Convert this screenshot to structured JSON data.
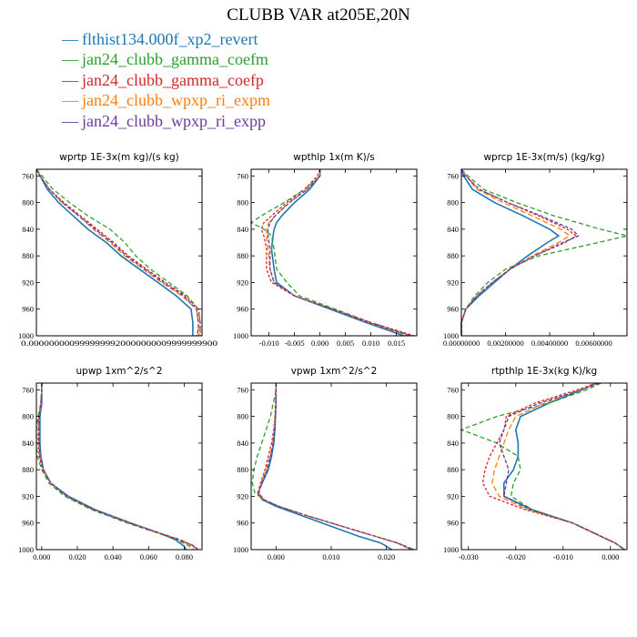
{
  "figure": {
    "title": "CLUBB VAR at205E,20N",
    "series": [
      {
        "name": "flthist134.000f_xp2_revert",
        "color": "#1f77b4",
        "dash": "none"
      },
      {
        "name": "jan24_clubb_gamma_coefm",
        "color": "#2ca02c",
        "dash": "5,3"
      },
      {
        "name": "jan24_clubb_gamma_coefp",
        "color": "#d62728",
        "dash": "3,2"
      },
      {
        "name": "jan24_clubb_wpxp_ri_expm",
        "color": "#ff7f0e",
        "dash": "6,3"
      },
      {
        "name": "jan24_clubb_wpxp_ri_expp",
        "color": "#6a3d9a",
        "dash": "4,2"
      }
    ]
  },
  "chart_data": [
    {
      "type": "line",
      "title": "wprtp  1E-3x(m kg)/(s kg)",
      "ylim": [
        1000,
        750
      ],
      "yticks": [
        760,
        800,
        840,
        880,
        920,
        960,
        1000
      ],
      "xlim": [
        0.0,
        0.09
      ],
      "xticks": [],
      "xtick_label_text": "0.0000000009999999920000000009999999900",
      "y": [
        750,
        760,
        780,
        800,
        820,
        840,
        860,
        880,
        900,
        920,
        940,
        960,
        980,
        990,
        1000
      ],
      "series": [
        {
          "x": [
            0.0,
            0.002,
            0.006,
            0.012,
            0.02,
            0.028,
            0.038,
            0.046,
            0.056,
            0.066,
            0.076,
            0.084,
            0.085,
            0.085,
            0.085
          ]
        },
        {
          "x": [
            0.0,
            0.003,
            0.009,
            0.018,
            0.028,
            0.04,
            0.048,
            0.054,
            0.062,
            0.072,
            0.082,
            0.088,
            0.089,
            0.089,
            0.088
          ]
        },
        {
          "x": [
            0.0,
            0.002,
            0.007,
            0.015,
            0.024,
            0.033,
            0.042,
            0.05,
            0.06,
            0.07,
            0.081,
            0.088,
            0.089,
            0.089,
            0.089
          ]
        },
        {
          "x": [
            0.0,
            0.002,
            0.007,
            0.014,
            0.023,
            0.031,
            0.04,
            0.048,
            0.058,
            0.068,
            0.079,
            0.087,
            0.088,
            0.088,
            0.088
          ]
        },
        {
          "x": [
            0.0,
            0.002,
            0.007,
            0.014,
            0.023,
            0.032,
            0.041,
            0.049,
            0.059,
            0.069,
            0.08,
            0.087,
            0.088,
            0.088,
            0.087
          ]
        }
      ]
    },
    {
      "type": "line",
      "title": "wpthlp  1x(m K)/s",
      "ylim": [
        1000,
        750
      ],
      "yticks": [
        760,
        800,
        840,
        880,
        920,
        960,
        1000
      ],
      "xlim": [
        -0.0135,
        0.019
      ],
      "xticks": [
        -0.01,
        -0.005,
        0.0,
        0.005,
        0.01,
        0.015
      ],
      "xtick_labels": [
        "-0.010",
        "-0.005",
        "0.000",
        "0.005",
        "0.010",
        "0.015"
      ],
      "y": [
        750,
        760,
        780,
        800,
        820,
        830,
        840,
        850,
        870,
        900,
        920,
        940,
        960,
        980,
        1000
      ],
      "series": [
        {
          "x": [
            0.0,
            0.0,
            -0.002,
            -0.005,
            -0.0075,
            -0.0085,
            -0.009,
            -0.0092,
            -0.0095,
            -0.009,
            -0.0085,
            -0.005,
            0.002,
            0.009,
            0.0165
          ]
        },
        {
          "x": [
            0.0,
            0.0,
            -0.003,
            -0.007,
            -0.0115,
            -0.0135,
            -0.011,
            -0.0095,
            -0.009,
            -0.0085,
            -0.0065,
            -0.004,
            0.003,
            0.01,
            0.018
          ]
        },
        {
          "x": [
            0.0,
            -0.0005,
            -0.003,
            -0.0065,
            -0.0095,
            -0.011,
            -0.0115,
            -0.011,
            -0.0105,
            -0.0105,
            -0.0095,
            -0.005,
            0.0025,
            0.01,
            0.0185
          ]
        },
        {
          "x": [
            0.0,
            0.0,
            -0.0025,
            -0.006,
            -0.0088,
            -0.01,
            -0.0105,
            -0.0105,
            -0.0102,
            -0.0098,
            -0.009,
            -0.005,
            0.0025,
            0.0095,
            0.0175
          ]
        },
        {
          "x": [
            0.0,
            0.0,
            -0.0025,
            -0.006,
            -0.0088,
            -0.0098,
            -0.0102,
            -0.0102,
            -0.0098,
            -0.0098,
            -0.009,
            -0.005,
            0.0025,
            0.0095,
            0.0178
          ]
        }
      ]
    },
    {
      "type": "line",
      "title": "wprcp  1E-3x(m/s) (kg/kg)",
      "ylim": [
        1000,
        750
      ],
      "yticks": [
        760,
        800,
        840,
        880,
        920,
        960,
        1000
      ],
      "xlim": [
        0.0,
        0.0075
      ],
      "xticks": [
        0.0,
        0.002,
        0.004,
        0.006
      ],
      "xtick_labels": [
        "0.00000000",
        "0.00200000",
        "0.00400000",
        "0.00600000"
      ],
      "y": [
        750,
        760,
        780,
        800,
        820,
        840,
        850,
        860,
        880,
        900,
        920,
        940,
        960,
        980,
        1000
      ],
      "series": [
        {
          "x": [
            0.0,
            0.0001,
            0.0005,
            0.0015,
            0.0028,
            0.004,
            0.0044,
            0.0039,
            0.003,
            0.0022,
            0.0015,
            0.0008,
            0.0002,
            0.0,
            0.0
          ]
        },
        {
          "x": [
            0.0,
            0.0003,
            0.001,
            0.0025,
            0.0042,
            0.0063,
            0.0075,
            0.0062,
            0.0035,
            0.002,
            0.0012,
            0.0006,
            0.0002,
            0.0,
            0.0
          ]
        },
        {
          "x": [
            0.0,
            0.0002,
            0.0008,
            0.0021,
            0.0035,
            0.0048,
            0.0052,
            0.0047,
            0.0033,
            0.0022,
            0.0014,
            0.0007,
            0.0002,
            0.0,
            0.0
          ]
        },
        {
          "x": [
            0.0,
            0.0002,
            0.0007,
            0.0019,
            0.0032,
            0.0045,
            0.0049,
            0.0044,
            0.0032,
            0.0022,
            0.0014,
            0.0007,
            0.0002,
            0.0,
            0.0
          ]
        },
        {
          "x": [
            0.0,
            0.0002,
            0.0008,
            0.0021,
            0.0036,
            0.005,
            0.0053,
            0.0046,
            0.0033,
            0.0022,
            0.0014,
            0.0007,
            0.0002,
            0.0,
            0.0
          ]
        }
      ]
    },
    {
      "type": "line",
      "title": "upwp  1xm^2/s^2",
      "ylim": [
        1000,
        750
      ],
      "yticks": [
        760,
        800,
        840,
        880,
        920,
        960,
        1000
      ],
      "xlim": [
        -0.003,
        0.09
      ],
      "xticks": [
        0.0,
        0.02,
        0.04,
        0.06,
        0.08
      ],
      "xtick_labels": [
        "0.000",
        "0.020",
        "0.040",
        "0.060",
        "0.080"
      ],
      "y": [
        750,
        760,
        780,
        800,
        820,
        840,
        860,
        880,
        900,
        920,
        940,
        960,
        975,
        985,
        995,
        1000
      ],
      "series": [
        {
          "x": [
            0.0,
            0.0,
            0.0,
            -0.001,
            -0.001,
            -0.001,
            -0.0005,
            0.001,
            0.005,
            0.015,
            0.03,
            0.05,
            0.066,
            0.075,
            0.08,
            0.081
          ]
        },
        {
          "x": [
            0.0,
            0.0,
            -0.0005,
            -0.002,
            -0.003,
            -0.003,
            -0.0025,
            0.0,
            0.004,
            0.013,
            0.028,
            0.048,
            0.065,
            0.076,
            0.083,
            0.085
          ]
        },
        {
          "x": [
            0.0,
            0.0,
            -0.0005,
            -0.0015,
            -0.002,
            -0.002,
            -0.0015,
            0.0005,
            0.005,
            0.014,
            0.029,
            0.049,
            0.066,
            0.077,
            0.085,
            0.087
          ]
        },
        {
          "x": [
            0.0,
            0.0,
            -0.0005,
            -0.0015,
            -0.0015,
            -0.0015,
            -0.001,
            0.001,
            0.005,
            0.014,
            0.029,
            0.049,
            0.066,
            0.078,
            0.086,
            0.088
          ]
        },
        {
          "x": [
            0.0,
            0.0,
            -0.0005,
            -0.0015,
            -0.0015,
            -0.0015,
            -0.001,
            0.001,
            0.005,
            0.014,
            0.029,
            0.049,
            0.066,
            0.077,
            0.086,
            0.087
          ]
        }
      ]
    },
    {
      "type": "line",
      "title": "vpwp  1xm^2/s^2",
      "ylim": [
        1000,
        750
      ],
      "yticks": [
        760,
        800,
        840,
        880,
        920,
        960,
        1000
      ],
      "xlim": [
        -0.0045,
        0.0255
      ],
      "xticks": [
        0.0,
        0.01,
        0.02
      ],
      "xtick_labels": [
        "0.000",
        "0.010",
        "0.020"
      ],
      "y": [
        750,
        760,
        780,
        800,
        820,
        840,
        860,
        880,
        900,
        915,
        925,
        935,
        950,
        965,
        980,
        990,
        1000
      ],
      "series": [
        {
          "x": [
            0.0,
            0.0,
            0.0,
            -0.0001,
            -0.0002,
            -0.0004,
            -0.0008,
            -0.0014,
            -0.0025,
            -0.0033,
            -0.0025,
            0.0,
            0.005,
            0.01,
            0.015,
            0.019,
            0.021
          ]
        },
        {
          "x": [
            0.0,
            0.0,
            -0.0005,
            -0.001,
            -0.0018,
            -0.0026,
            -0.0034,
            -0.004,
            -0.0043,
            -0.0038,
            -0.0022,
            0.0005,
            0.006,
            0.012,
            0.018,
            0.022,
            0.025
          ]
        },
        {
          "x": [
            0.0,
            0.0,
            -0.0001,
            -0.0002,
            -0.0004,
            -0.0008,
            -0.0014,
            -0.002,
            -0.0028,
            -0.0033,
            -0.0022,
            0.0005,
            0.006,
            0.012,
            0.018,
            0.022,
            0.025
          ]
        },
        {
          "x": [
            0.0,
            0.0,
            0.0,
            -0.0002,
            -0.0003,
            -0.0006,
            -0.0011,
            -0.0018,
            -0.0027,
            -0.0032,
            -0.0023,
            0.0005,
            0.006,
            0.012,
            0.018,
            0.022,
            0.0245
          ]
        },
        {
          "x": [
            0.0,
            0.0,
            0.0,
            -0.0001,
            -0.0003,
            -0.0005,
            -0.001,
            -0.0016,
            -0.0026,
            -0.0031,
            -0.0022,
            0.0005,
            0.006,
            0.012,
            0.018,
            0.022,
            0.0245
          ]
        }
      ]
    },
    {
      "type": "line",
      "title": "rtpthlp  1E-3x(kg K)/kg",
      "ylim": [
        1000,
        750
      ],
      "yticks": [
        760,
        800,
        840,
        880,
        920,
        960,
        1000
      ],
      "xlim": [
        -0.0315,
        0.0035
      ],
      "xticks": [
        -0.03,
        -0.02,
        -0.01,
        0.0
      ],
      "xtick_labels": [
        "-0.030",
        "-0.020",
        "-0.010",
        "0.000"
      ],
      "y": [
        750,
        760,
        780,
        800,
        820,
        840,
        860,
        880,
        900,
        920,
        940,
        960,
        980,
        990,
        1000
      ],
      "series": [
        {
          "x": [
            -0.003,
            -0.006,
            -0.013,
            -0.019,
            -0.02,
            -0.0195,
            -0.0195,
            -0.0205,
            -0.0225,
            -0.0225,
            -0.0165,
            -0.008,
            -0.002,
            0.001,
            0.003
          ]
        },
        {
          "x": [
            -0.002,
            -0.005,
            -0.013,
            -0.024,
            -0.0315,
            -0.024,
            -0.0195,
            -0.019,
            -0.0205,
            -0.021,
            -0.0165,
            -0.008,
            -0.002,
            0.001,
            0.003
          ]
        },
        {
          "x": [
            -0.003,
            -0.007,
            -0.016,
            -0.022,
            -0.0225,
            -0.024,
            -0.0255,
            -0.0265,
            -0.027,
            -0.0255,
            -0.018,
            -0.008,
            -0.002,
            0.001,
            0.003
          ]
        },
        {
          "x": [
            -0.0025,
            -0.0065,
            -0.014,
            -0.02,
            -0.0215,
            -0.0225,
            -0.0235,
            -0.0245,
            -0.025,
            -0.0235,
            -0.0175,
            -0.008,
            -0.002,
            0.001,
            0.003
          ]
        },
        {
          "x": [
            -0.0025,
            -0.006,
            -0.015,
            -0.0215,
            -0.0225,
            -0.0235,
            -0.0225,
            -0.0215,
            -0.022,
            -0.0225,
            -0.017,
            -0.008,
            -0.002,
            0.001,
            0.003
          ]
        }
      ]
    }
  ]
}
